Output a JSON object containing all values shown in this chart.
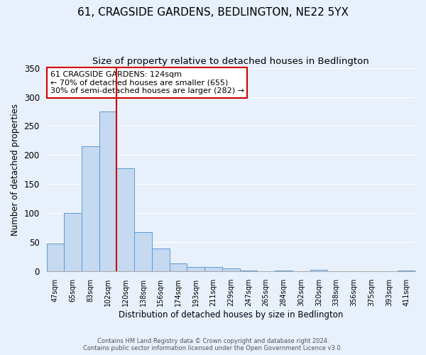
{
  "title": "61, CRAGSIDE GARDENS, BEDLINGTON, NE22 5YX",
  "subtitle": "Size of property relative to detached houses in Bedlington",
  "xlabel": "Distribution of detached houses by size in Bedlington",
  "ylabel": "Number of detached properties",
  "bar_labels": [
    "47sqm",
    "65sqm",
    "83sqm",
    "102sqm",
    "120sqm",
    "138sqm",
    "156sqm",
    "174sqm",
    "193sqm",
    "211sqm",
    "229sqm",
    "247sqm",
    "265sqm",
    "284sqm",
    "302sqm",
    "320sqm",
    "338sqm",
    "356sqm",
    "375sqm",
    "393sqm",
    "411sqm"
  ],
  "bar_values": [
    48,
    101,
    215,
    275,
    177,
    67,
    40,
    14,
    8,
    8,
    5,
    2,
    0,
    2,
    0,
    3,
    0,
    0,
    0,
    0,
    2
  ],
  "bar_color": "#c5d9f1",
  "bar_edge_color": "#5b9bd5",
  "vline_x_index": 4,
  "vline_color": "#cc0000",
  "annotation_title": "61 CRAGSIDE GARDENS: 124sqm",
  "annotation_line1": "← 70% of detached houses are smaller (655)",
  "annotation_line2": "30% of semi-detached houses are larger (282) →",
  "annotation_box_color": "#ffffff",
  "annotation_box_edge": "#cc0000",
  "ylim": [
    0,
    350
  ],
  "yticks": [
    0,
    50,
    100,
    150,
    200,
    250,
    300,
    350
  ],
  "footer1": "Contains HM Land Registry data © Crown copyright and database right 2024.",
  "footer2": "Contains public sector information licensed under the Open Government Licence v3.0.",
  "bg_color": "#e8f0fb",
  "plot_bg_color": "#e8f0fb",
  "title_fontsize": 11,
  "subtitle_fontsize": 9.5
}
